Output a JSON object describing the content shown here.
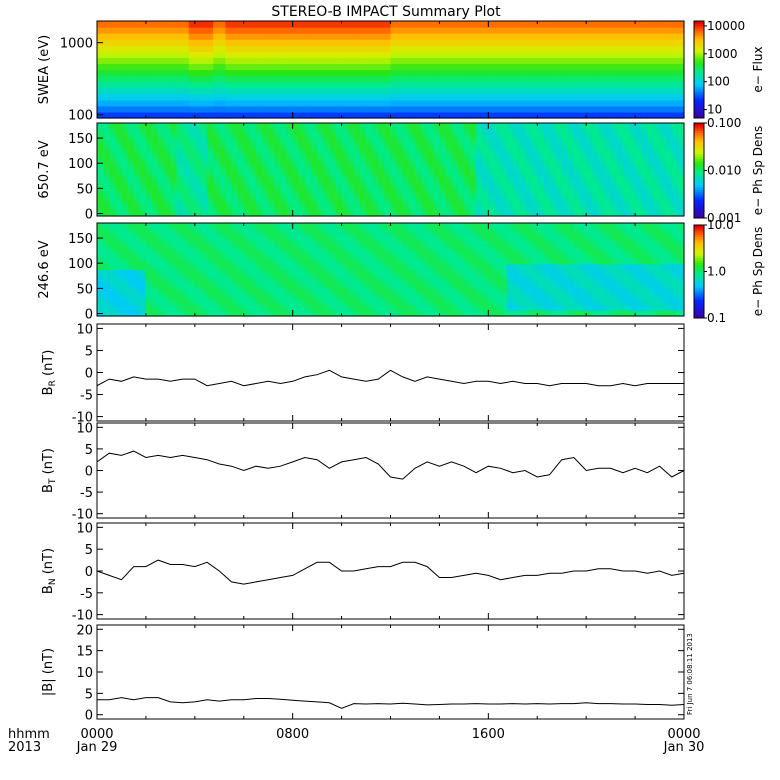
{
  "title": "STEREO-B IMPACT Summary Plot",
  "side_stamp": "Fri Jun  7 06:08:11 2013",
  "time_axis": {
    "corner_top": "hhmm",
    "corner_bottom": "2013",
    "ticks": [
      {
        "hour": 0,
        "top": "0000",
        "bottom": "Jan 29"
      },
      {
        "hour": 8,
        "top": "0800",
        "bottom": ""
      },
      {
        "hour": 16,
        "top": "1600",
        "bottom": ""
      },
      {
        "hour": 24,
        "top": "0000",
        "bottom": "Jan 30"
      }
    ],
    "range_hours": [
      0,
      24
    ]
  },
  "chart_data": [
    {
      "type": "heatmap",
      "ylabel": "SWEA (eV)",
      "yscale": "log",
      "ylim": [
        90,
        2000
      ],
      "yticks": [
        {
          "v": 100,
          "label": "100"
        },
        {
          "v": 1000,
          "label": "1000"
        }
      ],
      "colorbar": {
        "label": "e− Flux",
        "scale": "log",
        "range": [
          5,
          15000
        ],
        "ticks": [
          {
            "v": 10,
            "label": "10"
          },
          {
            "v": 100,
            "label": "100"
          },
          {
            "v": 1000,
            "label": "1000"
          },
          {
            "v": 10000,
            "label": "10000"
          }
        ]
      }
    },
    {
      "type": "heatmap",
      "ylabel": "650.7 eV",
      "ylim": [
        -5,
        180
      ],
      "yticks": [
        {
          "v": 0,
          "label": "0"
        },
        {
          "v": 50,
          "label": "50"
        },
        {
          "v": 100,
          "label": "100"
        },
        {
          "v": 150,
          "label": "150"
        }
      ],
      "colorbar": {
        "label": "e− Ph Sp Dens",
        "scale": "log",
        "range": [
          0.001,
          0.1
        ],
        "ticks": [
          {
            "v": 0.001,
            "label": "0.001"
          },
          {
            "v": 0.01,
            "label": "0.010"
          },
          {
            "v": 0.1,
            "label": "0.100"
          }
        ]
      }
    },
    {
      "type": "heatmap",
      "ylabel": "246.6 eV",
      "ylim": [
        -5,
        180
      ],
      "yticks": [
        {
          "v": 0,
          "label": "0"
        },
        {
          "v": 50,
          "label": "50"
        },
        {
          "v": 100,
          "label": "100"
        },
        {
          "v": 150,
          "label": "150"
        }
      ],
      "colorbar": {
        "label": "e− Ph Sp Dens",
        "scale": "log",
        "range": [
          0.1,
          10
        ],
        "ticks": [
          {
            "v": 0.1,
            "label": "0.1"
          },
          {
            "v": 1,
            "label": "1.0"
          },
          {
            "v": 10,
            "label": "10.0"
          }
        ]
      }
    },
    {
      "type": "line",
      "ylabel": "B",
      "ysub": "R",
      "yunit": " (nT)",
      "ylim": [
        -11,
        11
      ],
      "yticks": [
        -10,
        -5,
        0,
        5,
        10
      ],
      "x": [
        0,
        0.5,
        1,
        1.5,
        2,
        2.5,
        3,
        3.5,
        4,
        4.5,
        5,
        5.5,
        6,
        6.5,
        7,
        7.5,
        8,
        8.5,
        9,
        9.5,
        10,
        10.5,
        11,
        11.5,
        12,
        12.5,
        13,
        13.5,
        14,
        14.5,
        15,
        15.5,
        16,
        16.5,
        17,
        17.5,
        18,
        18.5,
        19,
        19.5,
        20,
        20.5,
        21,
        21.5,
        22,
        22.5,
        23,
        23.5,
        24
      ],
      "y": [
        -3,
        -1.5,
        -2,
        -1,
        -1.5,
        -1.5,
        -2,
        -1.5,
        -1.5,
        -3,
        -2.5,
        -2,
        -3,
        -2.5,
        -2,
        -2.5,
        -2,
        -1,
        -0.5,
        0.5,
        -1,
        -1.5,
        -2,
        -1.5,
        0.5,
        -1,
        -2,
        -1,
        -1.5,
        -2,
        -2.5,
        -2,
        -2,
        -2.5,
        -2,
        -2.5,
        -2.5,
        -3,
        -2.5,
        -2.5,
        -2.5,
        -3,
        -3,
        -2.5,
        -3,
        -2.5,
        -2.5,
        -2.5,
        -2.5
      ]
    },
    {
      "type": "line",
      "ylabel": "B",
      "ysub": "T",
      "yunit": " (nT)",
      "ylim": [
        -11,
        11
      ],
      "yticks": [
        -10,
        -5,
        0,
        5,
        10
      ],
      "x": [
        0,
        0.5,
        1,
        1.5,
        2,
        2.5,
        3,
        3.5,
        4,
        4.5,
        5,
        5.5,
        6,
        6.5,
        7,
        7.5,
        8,
        8.5,
        9,
        9.5,
        10,
        10.5,
        11,
        11.5,
        12,
        12.5,
        13,
        13.5,
        14,
        14.5,
        15,
        15.5,
        16,
        16.5,
        17,
        17.5,
        18,
        18.5,
        19,
        19.5,
        20,
        20.5,
        21,
        21.5,
        22,
        22.5,
        23,
        23.5,
        24
      ],
      "y": [
        2,
        4,
        3.5,
        4.5,
        3,
        3.5,
        3,
        3.5,
        3,
        2.5,
        1.5,
        1,
        0,
        1,
        0.5,
        1,
        2,
        3,
        2.5,
        0.5,
        2,
        2.5,
        3,
        1.5,
        -1.5,
        -2,
        0.5,
        2,
        1,
        2,
        1,
        -0.5,
        1,
        0.5,
        -0.5,
        0,
        -1.5,
        -1,
        2.5,
        3,
        0,
        0.5,
        0.5,
        -0.5,
        0.5,
        -0.5,
        1,
        -1.5,
        0
      ]
    },
    {
      "type": "line",
      "ylabel": "B",
      "ysub": "N",
      "yunit": " (nT)",
      "ylim": [
        -11,
        11
      ],
      "yticks": [
        -10,
        -5,
        0,
        5,
        10
      ],
      "x": [
        0,
        0.5,
        1,
        1.5,
        2,
        2.5,
        3,
        3.5,
        4,
        4.5,
        5,
        5.5,
        6,
        6.5,
        7,
        7.5,
        8,
        8.5,
        9,
        9.5,
        10,
        10.5,
        11,
        11.5,
        12,
        12.5,
        13,
        13.5,
        14,
        14.5,
        15,
        15.5,
        16,
        16.5,
        17,
        17.5,
        18,
        18.5,
        19,
        19.5,
        20,
        20.5,
        21,
        21.5,
        22,
        22.5,
        23,
        23.5,
        24
      ],
      "y": [
        0,
        -1,
        -2,
        1,
        1,
        2.5,
        1.5,
        1.5,
        1,
        2,
        0,
        -2.5,
        -3,
        -2.5,
        -2,
        -1.5,
        -1,
        0.5,
        2,
        2,
        0,
        0,
        0.5,
        1,
        1,
        2,
        2,
        1,
        -1.5,
        -1.5,
        -1,
        -0.5,
        -1,
        -2,
        -1.5,
        -1,
        -1,
        -0.5,
        -0.5,
        0,
        0,
        0.5,
        0.5,
        0,
        0,
        -0.5,
        0,
        -1,
        -0.5
      ]
    },
    {
      "type": "line",
      "ylabel": "|B|",
      "ysub": "",
      "yunit": " (nT)",
      "ylim": [
        -1,
        21
      ],
      "yticks": [
        0,
        5,
        10,
        15,
        20
      ],
      "x": [
        0,
        0.5,
        1,
        1.5,
        2,
        2.5,
        3,
        3.5,
        4,
        4.5,
        5,
        5.5,
        6,
        6.5,
        7,
        7.5,
        8,
        8.5,
        9,
        9.5,
        10,
        10.5,
        11,
        11.5,
        12,
        12.5,
        13,
        13.5,
        14,
        14.5,
        15,
        15.5,
        16,
        16.5,
        17,
        17.5,
        18,
        18.5,
        19,
        19.5,
        20,
        20.5,
        21,
        21.5,
        22,
        22.5,
        23,
        23.5,
        24
      ],
      "y": [
        3.5,
        3.5,
        4,
        3.5,
        4,
        4,
        3,
        2.8,
        3,
        3.5,
        3.2,
        3.5,
        3.5,
        3.8,
        3.8,
        3.6,
        3.4,
        3.2,
        3,
        2.8,
        1.5,
        2.6,
        2.5,
        2.6,
        2.5,
        2.7,
        2.5,
        2.3,
        2.4,
        2.5,
        2.5,
        2.6,
        2.5,
        2.5,
        2.6,
        2.5,
        2.6,
        2.5,
        2.6,
        2.6,
        2.8,
        2.6,
        2.6,
        2.5,
        2.5,
        2.4,
        2.4,
        2.2,
        2.4
      ]
    }
  ]
}
